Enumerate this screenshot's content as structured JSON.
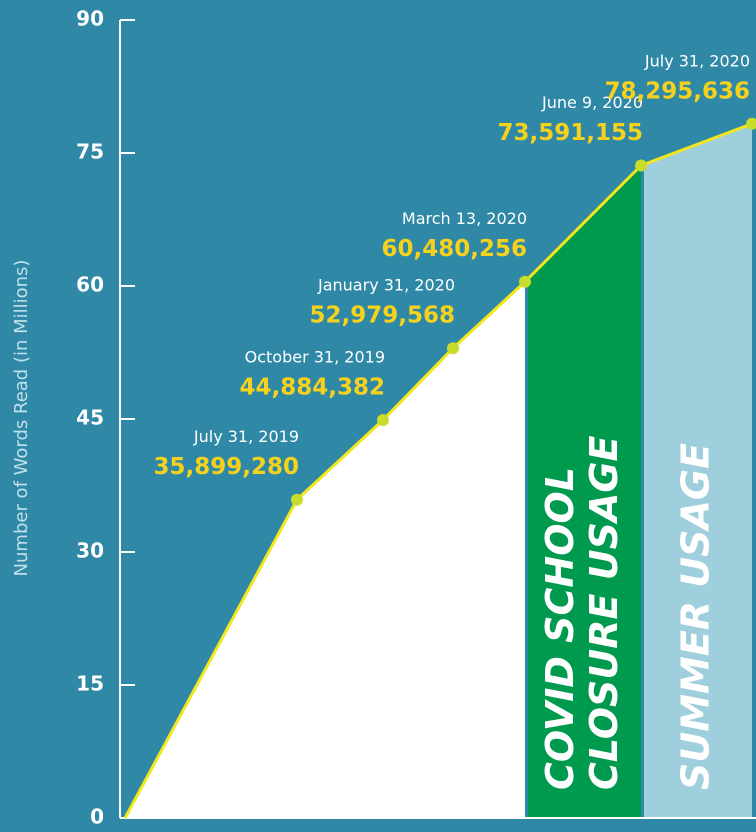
{
  "chart_data": {
    "type": "area-line",
    "y_title": "Number of Words Read (in Millions)",
    "x": [
      null,
      "July 31, 2019",
      "October 31, 2019",
      "January 31, 2020",
      "March 13, 2020",
      "June 9, 2020",
      "July 31, 2020"
    ],
    "values": [
      0,
      35.89928,
      44.884382,
      52.979568,
      60.480256,
      73.591155,
      78.295636
    ],
    "value_labels": [
      null,
      "35,899,280",
      "44,884,382",
      "52,979,568",
      "60,480,256",
      "73,591,155",
      "78,295,636"
    ],
    "color": "#f2e61c",
    "marker_color": "#c9dc2a",
    "area_color": "#ffffff",
    "regions": [
      {
        "text": [
          "COVID SCHOOL",
          "CLOSURE USAGE"
        ],
        "color": "#009a4e"
      },
      {
        "text": [
          "SUMMER USAGE"
        ],
        "color": "#9fcfdc"
      }
    ],
    "ylim": [
      0,
      90
    ],
    "yticks": [
      0,
      15,
      30,
      45,
      60,
      75,
      90
    ]
  }
}
